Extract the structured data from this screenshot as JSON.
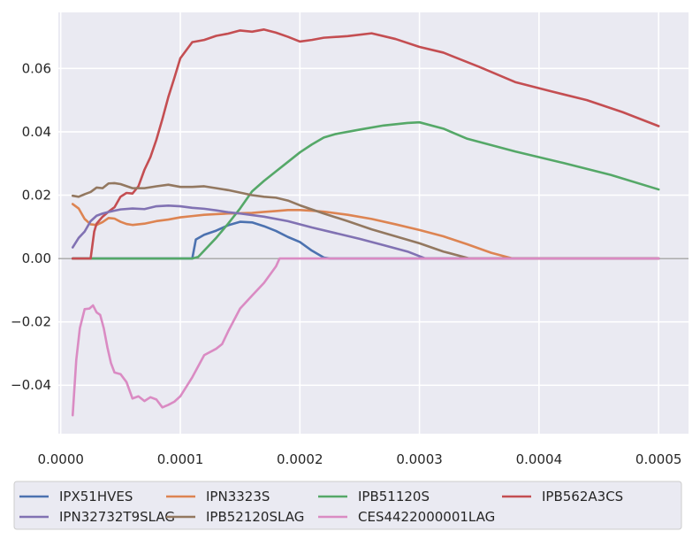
{
  "chart_data": {
    "type": "line",
    "title": "",
    "xlabel": "",
    "ylabel": "",
    "xlim": [
      -2e-06,
      0.000525
    ],
    "ylim": [
      -0.0553,
      0.0777
    ],
    "x_ticks": [
      0.0,
      0.0001,
      0.0002,
      0.0003,
      0.0004,
      0.0005
    ],
    "x_tick_labels": [
      "0.0000",
      "0.0001",
      "0.0002",
      "0.0003",
      "0.0004",
      "0.0005"
    ],
    "y_ticks": [
      -0.04,
      -0.02,
      0.0,
      0.02,
      0.04,
      0.06
    ],
    "y_tick_labels": [
      "−0.04",
      "−0.02",
      "0.00",
      "0.02",
      "0.04",
      "0.06"
    ],
    "grid": true,
    "zero_line": true,
    "legend_position": "bottom",
    "legend_columns": 4,
    "series": [
      {
        "name": "IPX51HVES",
        "color": "#4c72b0",
        "points": [
          [
            1e-05,
            0
          ],
          [
            0.0001,
            0
          ],
          [
            0.00011,
            0
          ],
          [
            0.000113,
            0.006
          ],
          [
            0.00012,
            0.0075
          ],
          [
            0.00013,
            0.0088
          ],
          [
            0.00014,
            0.0105
          ],
          [
            0.00015,
            0.0116
          ],
          [
            0.00016,
            0.0114
          ],
          [
            0.00017,
            0.0102
          ],
          [
            0.00018,
            0.0087
          ],
          [
            0.00019,
            0.0068
          ],
          [
            0.0002,
            0.0052
          ],
          [
            0.00021,
            0.0025
          ],
          [
            0.00022,
            0.0003
          ],
          [
            0.000225,
            0
          ],
          [
            0.0005,
            0
          ]
        ]
      },
      {
        "name": "IPN3323S",
        "color": "#dd8452",
        "points": [
          [
            1e-05,
            0.0172
          ],
          [
            1.5e-05,
            0.0158
          ],
          [
            2e-05,
            0.0125
          ],
          [
            2.5e-05,
            0.0108
          ],
          [
            3e-05,
            0.0106
          ],
          [
            3.5e-05,
            0.0115
          ],
          [
            4e-05,
            0.0128
          ],
          [
            4.5e-05,
            0.0126
          ],
          [
            5e-05,
            0.0116
          ],
          [
            5.5e-05,
            0.0109
          ],
          [
            6e-05,
            0.0106
          ],
          [
            7e-05,
            0.011
          ],
          [
            8e-05,
            0.0118
          ],
          [
            9e-05,
            0.0123
          ],
          [
            0.0001,
            0.013
          ],
          [
            0.00011,
            0.0134
          ],
          [
            0.00012,
            0.0138
          ],
          [
            0.00013,
            0.014
          ],
          [
            0.00014,
            0.0142
          ],
          [
            0.00015,
            0.0143
          ],
          [
            0.00016,
            0.0144
          ],
          [
            0.00017,
            0.0147
          ],
          [
            0.00018,
            0.015
          ],
          [
            0.00019,
            0.0153
          ],
          [
            0.0002,
            0.0153
          ],
          [
            0.00021,
            0.0151
          ],
          [
            0.00022,
            0.0148
          ],
          [
            0.00024,
            0.0138
          ],
          [
            0.00026,
            0.0125
          ],
          [
            0.00028,
            0.0108
          ],
          [
            0.0003,
            0.009
          ],
          [
            0.00032,
            0.007
          ],
          [
            0.00034,
            0.0045
          ],
          [
            0.00036,
            0.0018
          ],
          [
            0.000378,
            0
          ],
          [
            0.0005,
            0
          ]
        ]
      },
      {
        "name": "IPB51120S",
        "color": "#55a868",
        "points": [
          [
            1e-05,
            0
          ],
          [
            0.00011,
            0
          ],
          [
            0.000115,
            0.0005
          ],
          [
            0.00013,
            0.0065
          ],
          [
            0.00014,
            0.011
          ],
          [
            0.00015,
            0.0158
          ],
          [
            0.00016,
            0.0212
          ],
          [
            0.00017,
            0.0245
          ],
          [
            0.00018,
            0.0275
          ],
          [
            0.00019,
            0.0305
          ],
          [
            0.0002,
            0.0335
          ],
          [
            0.00021,
            0.036
          ],
          [
            0.00022,
            0.0382
          ],
          [
            0.00023,
            0.0393
          ],
          [
            0.00025,
            0.0407
          ],
          [
            0.00027,
            0.042
          ],
          [
            0.00029,
            0.0428
          ],
          [
            0.0003,
            0.043
          ],
          [
            0.00032,
            0.041
          ],
          [
            0.00034,
            0.0378
          ],
          [
            0.00038,
            0.0338
          ],
          [
            0.00042,
            0.0302
          ],
          [
            0.00046,
            0.0264
          ],
          [
            0.0005,
            0.0218
          ]
        ]
      },
      {
        "name": "IPB562A3CS",
        "color": "#c44e52",
        "points": [
          [
            1e-05,
            0
          ],
          [
            2.5e-05,
            0
          ],
          [
            2.8e-05,
            0.0085
          ],
          [
            3e-05,
            0.011
          ],
          [
            3.5e-05,
            0.0132
          ],
          [
            4e-05,
            0.0148
          ],
          [
            4.5e-05,
            0.0162
          ],
          [
            5e-05,
            0.0195
          ],
          [
            5.5e-05,
            0.0207
          ],
          [
            6e-05,
            0.0205
          ],
          [
            6.5e-05,
            0.0228
          ],
          [
            7e-05,
            0.028
          ],
          [
            7.5e-05,
            0.032
          ],
          [
            8e-05,
            0.0375
          ],
          [
            8.5e-05,
            0.044
          ],
          [
            9e-05,
            0.051
          ],
          [
            9.5e-05,
            0.057
          ],
          [
            0.0001,
            0.0632
          ],
          [
            0.00011,
            0.0683
          ],
          [
            0.00012,
            0.069
          ],
          [
            0.00013,
            0.0703
          ],
          [
            0.00014,
            0.071
          ],
          [
            0.00015,
            0.072
          ],
          [
            0.00016,
            0.0716
          ],
          [
            0.00017,
            0.0723
          ],
          [
            0.00018,
            0.0713
          ],
          [
            0.00019,
            0.07
          ],
          [
            0.0002,
            0.0685
          ],
          [
            0.00021,
            0.069
          ],
          [
            0.00022,
            0.0697
          ],
          [
            0.00024,
            0.0702
          ],
          [
            0.00026,
            0.0711
          ],
          [
            0.00028,
            0.0693
          ],
          [
            0.0003,
            0.0668
          ],
          [
            0.00032,
            0.065
          ],
          [
            0.00035,
            0.0605
          ],
          [
            0.00038,
            0.0557
          ],
          [
            0.00041,
            0.0528
          ],
          [
            0.00044,
            0.05
          ],
          [
            0.00047,
            0.0462
          ],
          [
            0.0005,
            0.0418
          ]
        ]
      },
      {
        "name": "IPN32732T9SLAG",
        "color": "#8172b3",
        "points": [
          [
            1e-05,
            0.0035
          ],
          [
            1.5e-05,
            0.0065
          ],
          [
            2e-05,
            0.0085
          ],
          [
            2.5e-05,
            0.0118
          ],
          [
            3e-05,
            0.0135
          ],
          [
            3.5e-05,
            0.0142
          ],
          [
            4e-05,
            0.0147
          ],
          [
            5e-05,
            0.0155
          ],
          [
            6e-05,
            0.0158
          ],
          [
            7e-05,
            0.0156
          ],
          [
            8e-05,
            0.0165
          ],
          [
            9e-05,
            0.0167
          ],
          [
            0.0001,
            0.0165
          ],
          [
            0.00011,
            0.016
          ],
          [
            0.00012,
            0.0157
          ],
          [
            0.00013,
            0.0152
          ],
          [
            0.00014,
            0.0146
          ],
          [
            0.00015,
            0.0142
          ],
          [
            0.00017,
            0.0132
          ],
          [
            0.00019,
            0.0118
          ],
          [
            0.00021,
            0.0098
          ],
          [
            0.00023,
            0.008
          ],
          [
            0.00025,
            0.0062
          ],
          [
            0.00027,
            0.0042
          ],
          [
            0.00029,
            0.0022
          ],
          [
            0.000305,
            0
          ],
          [
            0.0005,
            0
          ]
        ]
      },
      {
        "name": "IPB52120SLAG",
        "color": "#937860",
        "points": [
          [
            1e-05,
            0.0198
          ],
          [
            1.5e-05,
            0.0195
          ],
          [
            2e-05,
            0.0203
          ],
          [
            2.5e-05,
            0.021
          ],
          [
            3e-05,
            0.0224
          ],
          [
            3.5e-05,
            0.0222
          ],
          [
            4e-05,
            0.0237
          ],
          [
            4.5e-05,
            0.0238
          ],
          [
            5e-05,
            0.0235
          ],
          [
            6e-05,
            0.0222
          ],
          [
            7e-05,
            0.0222
          ],
          [
            8e-05,
            0.0228
          ],
          [
            9e-05,
            0.0233
          ],
          [
            0.0001,
            0.0226
          ],
          [
            0.00011,
            0.0226
          ],
          [
            0.00012,
            0.0228
          ],
          [
            0.00013,
            0.0222
          ],
          [
            0.00014,
            0.0216
          ],
          [
            0.00015,
            0.0208
          ],
          [
            0.00016,
            0.02
          ],
          [
            0.00017,
            0.0195
          ],
          [
            0.00018,
            0.0192
          ],
          [
            0.00019,
            0.0183
          ],
          [
            0.0002,
            0.0168
          ],
          [
            0.00022,
            0.0142
          ],
          [
            0.00024,
            0.0118
          ],
          [
            0.00026,
            0.0092
          ],
          [
            0.00028,
            0.007
          ],
          [
            0.0003,
            0.0048
          ],
          [
            0.00032,
            0.0022
          ],
          [
            0.000342,
            0
          ],
          [
            0.0005,
            0
          ]
        ]
      },
      {
        "name": "CES4422000001LAG",
        "color": "#da8bc3",
        "points": [
          [
            1e-05,
            -0.0495
          ],
          [
            1.3e-05,
            -0.032
          ],
          [
            1.6e-05,
            -0.022
          ],
          [
            2e-05,
            -0.016
          ],
          [
            2.4e-05,
            -0.0158
          ],
          [
            2.7e-05,
            -0.0148
          ],
          [
            3e-05,
            -0.017
          ],
          [
            3.3e-05,
            -0.0178
          ],
          [
            3.6e-05,
            -0.022
          ],
          [
            3.9e-05,
            -0.028
          ],
          [
            4.2e-05,
            -0.033
          ],
          [
            4.5e-05,
            -0.036
          ],
          [
            5e-05,
            -0.0365
          ],
          [
            5.5e-05,
            -0.039
          ],
          [
            6e-05,
            -0.0442
          ],
          [
            6.5e-05,
            -0.0435
          ],
          [
            7e-05,
            -0.045
          ],
          [
            7.5e-05,
            -0.0438
          ],
          [
            8e-05,
            -0.0445
          ],
          [
            8.5e-05,
            -0.047
          ],
          [
            9e-05,
            -0.0462
          ],
          [
            9.5e-05,
            -0.0452
          ],
          [
            0.0001,
            -0.0435
          ],
          [
            0.00011,
            -0.0375
          ],
          [
            0.00012,
            -0.0305
          ],
          [
            0.00013,
            -0.0285
          ],
          [
            0.000135,
            -0.027
          ],
          [
            0.00014,
            -0.023
          ],
          [
            0.00015,
            -0.0158
          ],
          [
            0.00016,
            -0.0117
          ],
          [
            0.00017,
            -0.0077
          ],
          [
            0.00018,
            -0.0025
          ],
          [
            0.000183,
            0
          ],
          [
            0.0005,
            0
          ]
        ]
      }
    ]
  }
}
